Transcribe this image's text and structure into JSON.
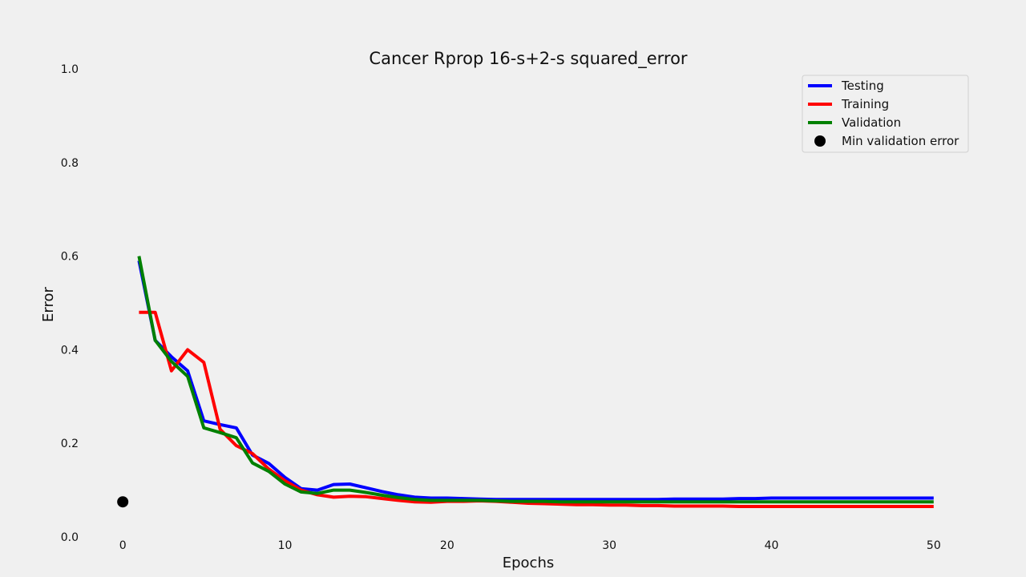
{
  "chart_data": {
    "type": "line",
    "title": "Cancer Rprop 16-s+2-s squared_error",
    "xlabel": "Epochs",
    "ylabel": "Error",
    "xlim": [
      -5,
      55
    ],
    "ylim": [
      0,
      1.0
    ],
    "xticks": [
      "0",
      "10",
      "20",
      "30",
      "40",
      "50"
    ],
    "yticks": [
      "0.0",
      "0.2",
      "0.4",
      "0.6",
      "0.8",
      "1.0"
    ],
    "grid": false,
    "legend_position": "top-right",
    "x": [
      1,
      2,
      3,
      4,
      5,
      6,
      7,
      8,
      9,
      10,
      11,
      12,
      13,
      14,
      15,
      16,
      17,
      18,
      19,
      20,
      21,
      22,
      23,
      24,
      25,
      26,
      27,
      28,
      29,
      30,
      31,
      32,
      33,
      34,
      35,
      36,
      37,
      38,
      39,
      40,
      41,
      42,
      43,
      44,
      45,
      46,
      47,
      48,
      49,
      50
    ],
    "series": [
      {
        "name": "Testing",
        "color": "#0000ff",
        "values": [
          0.59,
          0.42,
          0.385,
          0.355,
          0.248,
          0.24,
          0.233,
          0.175,
          0.157,
          0.127,
          0.103,
          0.1,
          0.112,
          0.113,
          0.105,
          0.097,
          0.09,
          0.085,
          0.083,
          0.083,
          0.082,
          0.081,
          0.08,
          0.08,
          0.08,
          0.08,
          0.08,
          0.08,
          0.08,
          0.08,
          0.08,
          0.08,
          0.08,
          0.081,
          0.081,
          0.081,
          0.081,
          0.082,
          0.082,
          0.083,
          0.083,
          0.083,
          0.083,
          0.083,
          0.083,
          0.083,
          0.083,
          0.083,
          0.083,
          0.083
        ]
      },
      {
        "name": "Training",
        "color": "#ff0000",
        "values": [
          0.48,
          0.48,
          0.355,
          0.4,
          0.373,
          0.23,
          0.195,
          0.178,
          0.145,
          0.12,
          0.1,
          0.09,
          0.085,
          0.087,
          0.086,
          0.082,
          0.078,
          0.075,
          0.074,
          0.076,
          0.076,
          0.077,
          0.076,
          0.074,
          0.072,
          0.071,
          0.07,
          0.069,
          0.069,
          0.068,
          0.068,
          0.067,
          0.067,
          0.066,
          0.066,
          0.066,
          0.066,
          0.065,
          0.065,
          0.065,
          0.065,
          0.065,
          0.065,
          0.065,
          0.065,
          0.065,
          0.065,
          0.065,
          0.065,
          0.065
        ]
      },
      {
        "name": "Validation",
        "color": "#008000",
        "values": [
          0.6,
          0.42,
          0.375,
          0.343,
          0.233,
          0.223,
          0.212,
          0.158,
          0.14,
          0.113,
          0.096,
          0.093,
          0.1,
          0.1,
          0.095,
          0.089,
          0.084,
          0.08,
          0.078,
          0.078,
          0.078,
          0.078,
          0.077,
          0.076,
          0.076,
          0.076,
          0.075,
          0.075,
          0.075,
          0.075,
          0.075,
          0.075,
          0.075,
          0.075,
          0.075,
          0.075,
          0.075,
          0.075,
          0.075,
          0.075,
          0.075,
          0.075,
          0.075,
          0.075,
          0.075,
          0.075,
          0.075,
          0.075,
          0.075,
          0.075
        ]
      }
    ],
    "markers": [
      {
        "name": "Min validation error",
        "color": "#000000",
        "x": 0,
        "y": 0.075
      }
    ]
  }
}
